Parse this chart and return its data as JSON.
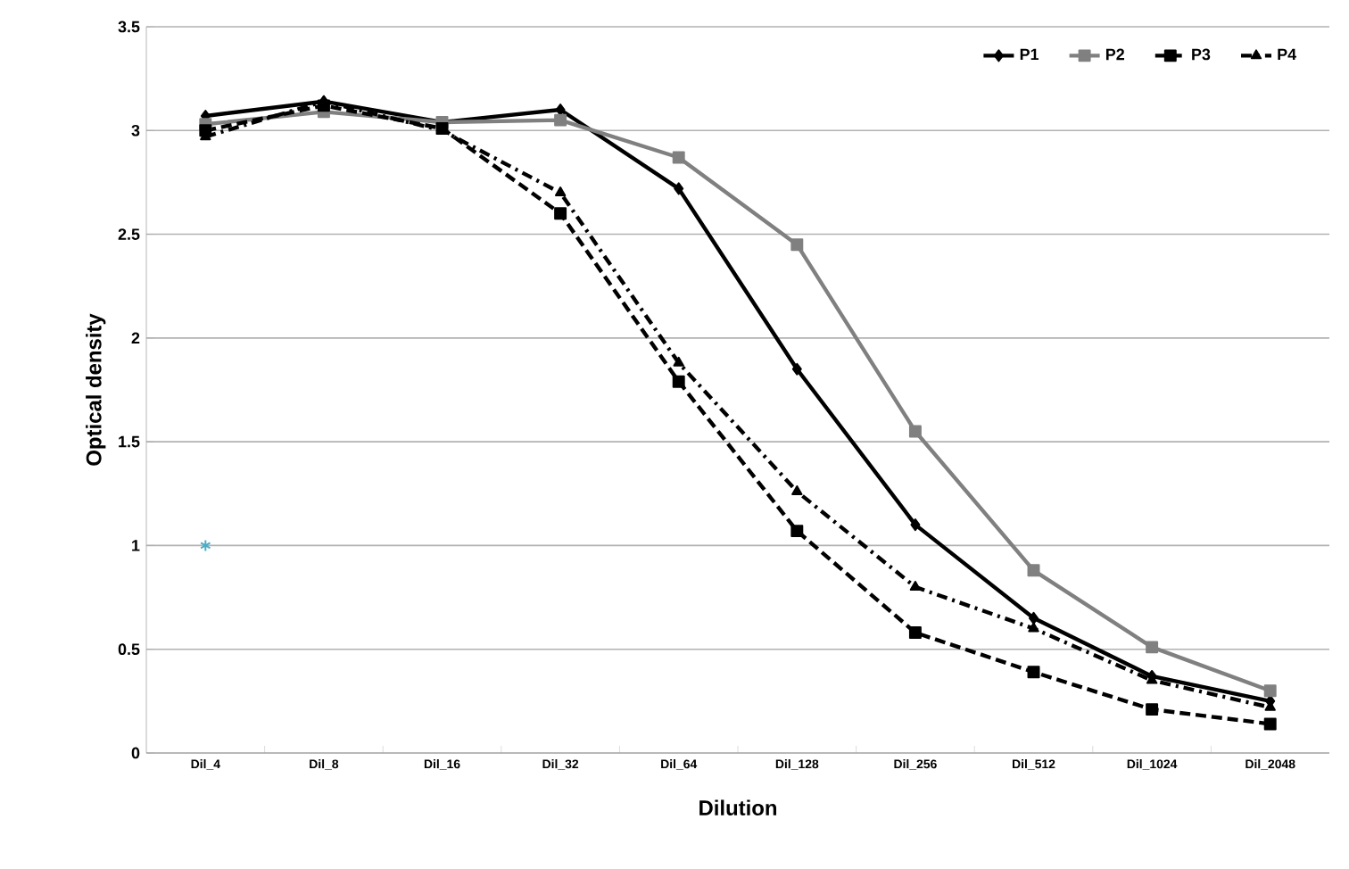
{
  "chart_data": {
    "type": "line",
    "xlabel": "Dilution",
    "ylabel": "Optical density",
    "categories": [
      "Dil_4",
      "Dil_8",
      "Dil_16",
      "Dil_32",
      "Dil_64",
      "Dil_128",
      "Dil_256",
      "Dil_512",
      "Dil_1024",
      "Dil_2048"
    ],
    "series": [
      {
        "name": "P1",
        "color": "#000000",
        "marker": "diamond",
        "line_style": "solid",
        "values": [
          3.07,
          3.14,
          3.04,
          3.1,
          2.72,
          1.85,
          1.1,
          0.65,
          0.37,
          0.25
        ]
      },
      {
        "name": "P2",
        "color": "#808080",
        "marker": "square",
        "line_style": "solid",
        "values": [
          3.03,
          3.09,
          3.04,
          3.05,
          2.87,
          2.45,
          1.55,
          0.88,
          0.51,
          0.3
        ]
      },
      {
        "name": "P3",
        "color": "#000000",
        "marker": "square",
        "line_style": "dashed",
        "values": [
          3.0,
          3.12,
          3.01,
          2.6,
          1.79,
          1.07,
          0.58,
          0.39,
          0.21,
          0.14
        ]
      },
      {
        "name": "P4",
        "color": "#000000",
        "marker": "triangle",
        "line_style": "dotted",
        "values": [
          2.97,
          3.14,
          3.0,
          2.7,
          1.88,
          1.26,
          0.8,
          0.6,
          0.35,
          0.22
        ]
      },
      {
        "type": "scatter",
        "color": "#4bacc6",
        "marker": "cross",
        "values": [
          1.0,
          null,
          null,
          null,
          null,
          null,
          null,
          null,
          null,
          null
        ]
      }
    ],
    "ylim": [
      0,
      3.5
    ],
    "yticks": [
      0,
      0.5,
      1,
      1.5,
      2,
      2.5,
      3,
      3.5
    ],
    "grid": "y",
    "legend": "top right"
  }
}
